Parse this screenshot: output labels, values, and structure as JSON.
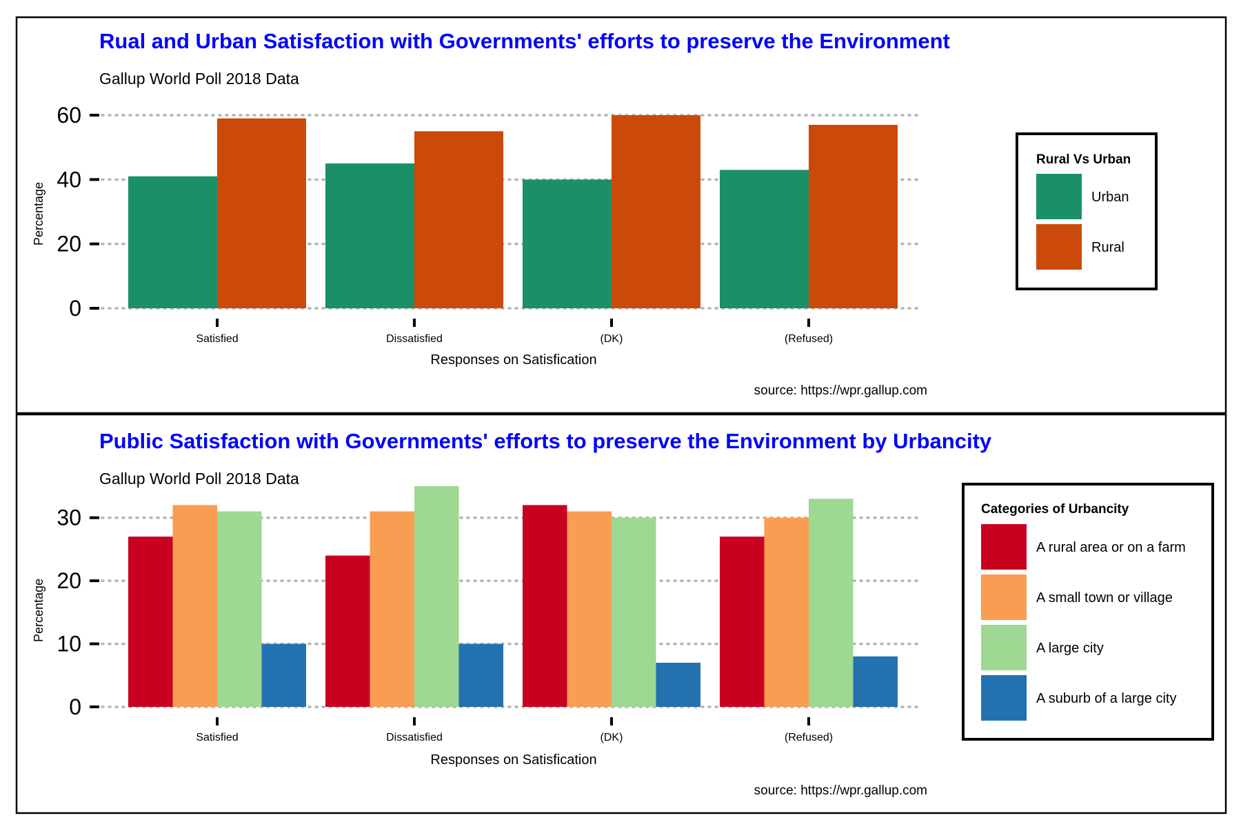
{
  "colors": {
    "title": "#0000ff",
    "urban": "#1b9066",
    "rural": "#cc4a09",
    "rural_farm": "#ca0020",
    "small_town": "#f99d52",
    "large_city": "#9ed893",
    "suburb": "#2471b0",
    "grid": "#b3b3b3"
  },
  "chart_data": [
    {
      "type": "bar",
      "title": "Rual and Urban Satisfaction with Governments' efforts to preserve the Environment",
      "subtitle": "Gallup World Poll 2018 Data",
      "xlabel": "Responses on Satisfication",
      "ylabel": "Percentage",
      "source": "source: https://wpr.gallup.com",
      "categories": [
        "Satisfied",
        "Dissatisfied",
        "(DK)",
        "(Refused)"
      ],
      "ylim": [
        0,
        60
      ],
      "yticks": [
        0,
        20,
        40,
        60
      ],
      "grid": "horizontal dotted",
      "legend": {
        "title": "Rural Vs Urban",
        "placement": "right"
      },
      "series": [
        {
          "name": "Urban",
          "color_key": "urban",
          "values": [
            41,
            45,
            40,
            43
          ]
        },
        {
          "name": "Rural",
          "color_key": "rural",
          "values": [
            59,
            55,
            60,
            57
          ]
        }
      ]
    },
    {
      "type": "bar",
      "title": "Public Satisfaction with Governments' efforts to preserve the Environment by Urbancity",
      "subtitle": "Gallup World Poll 2018 Data",
      "xlabel": "Responses on Satisfication",
      "ylabel": "Percentage",
      "source": "source: https://wpr.gallup.com",
      "categories": [
        "Satisfied",
        "Dissatisfied",
        "(DK)",
        "(Refused)"
      ],
      "ylim": [
        0,
        35
      ],
      "yticks": [
        0,
        10,
        20,
        30
      ],
      "grid": "horizontal dotted",
      "legend": {
        "title": "Categories of Urbancity",
        "placement": "right"
      },
      "series": [
        {
          "name": "A rural area or on a farm",
          "color_key": "rural_farm",
          "values": [
            27,
            24,
            32,
            27
          ]
        },
        {
          "name": "A small town or village",
          "color_key": "small_town",
          "values": [
            32,
            31,
            31,
            30
          ]
        },
        {
          "name": "A large city",
          "color_key": "large_city",
          "values": [
            31,
            35,
            30,
            33
          ]
        },
        {
          "name": "A suburb of a large city",
          "color_key": "suburb",
          "values": [
            10,
            10,
            7,
            8
          ]
        }
      ]
    }
  ]
}
